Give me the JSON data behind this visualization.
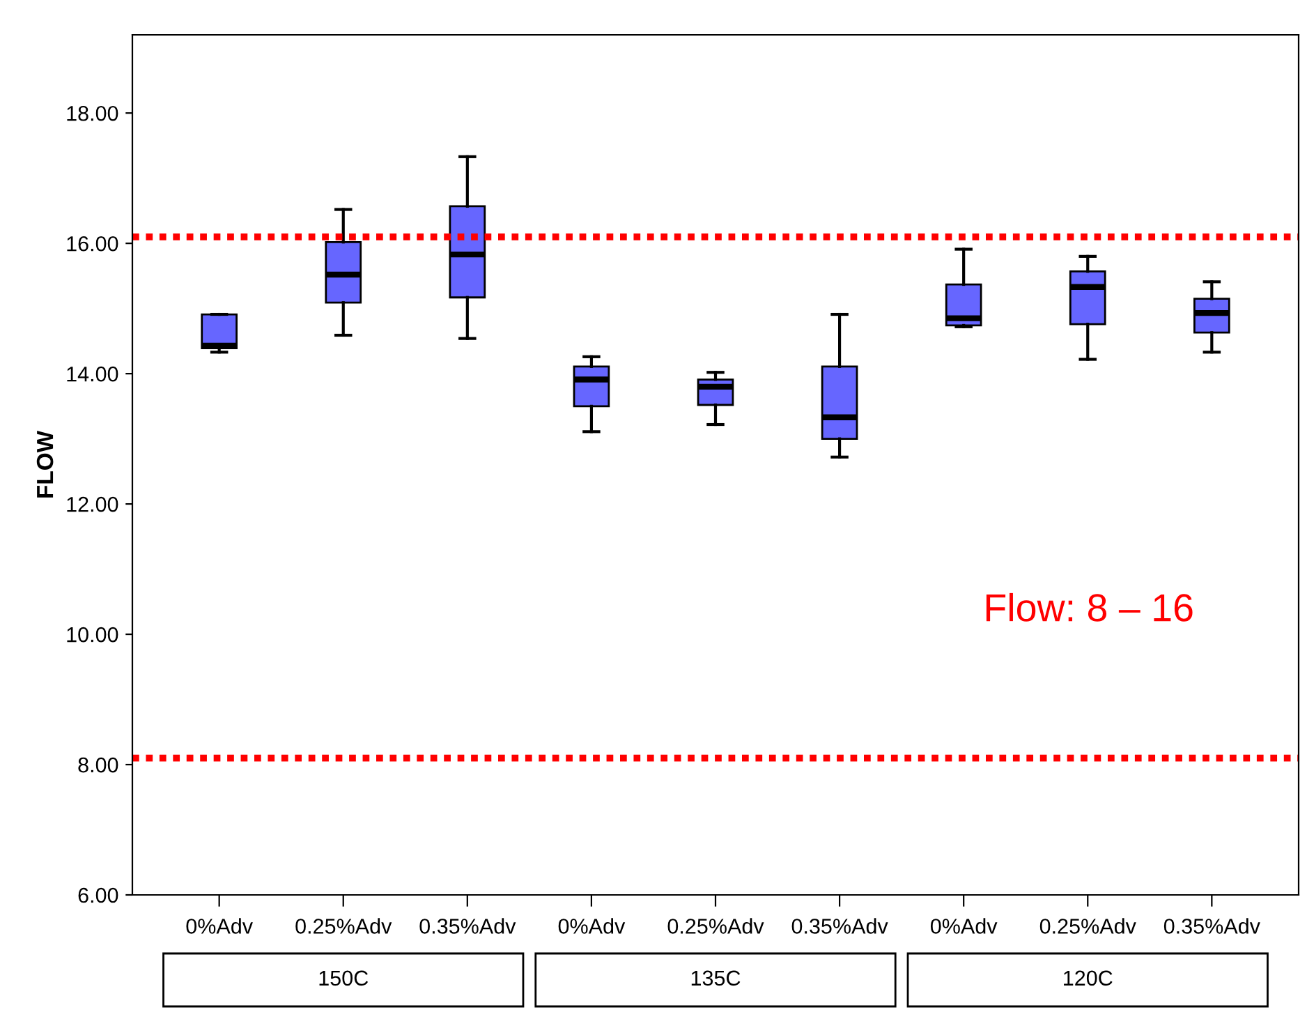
{
  "chart_data": {
    "type": "box",
    "ylabel": "FLOW",
    "categories": [
      "0%Adv",
      "0.25%Adv",
      "0.35%Adv",
      "0%Adv",
      "0.25%Adv",
      "0.35%Adv",
      "0%Adv",
      "0.25%Adv",
      "0.35%Adv"
    ],
    "boxes": [
      {
        "low": 14.33,
        "q1": 14.39,
        "median": 14.43,
        "q3": 14.91,
        "high": 14.91
      },
      {
        "low": 14.59,
        "q1": 15.09,
        "median": 15.52,
        "q3": 16.02,
        "high": 16.52
      },
      {
        "low": 14.54,
        "q1": 15.17,
        "median": 15.83,
        "q3": 16.57,
        "high": 17.33
      },
      {
        "low": 13.11,
        "q1": 13.5,
        "median": 13.91,
        "q3": 14.11,
        "high": 14.26
      },
      {
        "low": 13.22,
        "q1": 13.52,
        "median": 13.8,
        "q3": 13.91,
        "high": 14.02
      },
      {
        "low": 12.72,
        "q1": 13.0,
        "median": 13.33,
        "q3": 14.11,
        "high": 14.91
      },
      {
        "low": 14.72,
        "q1": 14.74,
        "median": 14.85,
        "q3": 15.37,
        "high": 15.91
      },
      {
        "low": 14.22,
        "q1": 14.76,
        "median": 15.33,
        "q3": 15.57,
        "high": 15.8
      },
      {
        "low": 14.33,
        "q1": 14.63,
        "median": 14.93,
        "q3": 15.15,
        "high": 15.41
      }
    ],
    "color": "#6666ff",
    "ylim": [
      6,
      19.2
    ],
    "yticks": [
      {
        "value": 6,
        "label": "6.00"
      },
      {
        "value": 8,
        "label": "8.00"
      },
      {
        "value": 10,
        "label": "10.00"
      },
      {
        "value": 12,
        "label": "12.00"
      },
      {
        "value": 14,
        "label": "14.00"
      },
      {
        "value": 16,
        "label": "16.00"
      },
      {
        "value": 18,
        "label": "18.00"
      }
    ],
    "ref_lines": [
      {
        "axis": "y",
        "value": 16.1,
        "color": "#ff0000",
        "line_style": "dotted"
      },
      {
        "axis": "y",
        "value": 8.1,
        "color": "#ff0000",
        "line_style": "dotted"
      }
    ],
    "annotations": [
      "150C",
      "135C",
      "120C",
      "Flow: 8 – 16"
    ],
    "grid": false
  }
}
